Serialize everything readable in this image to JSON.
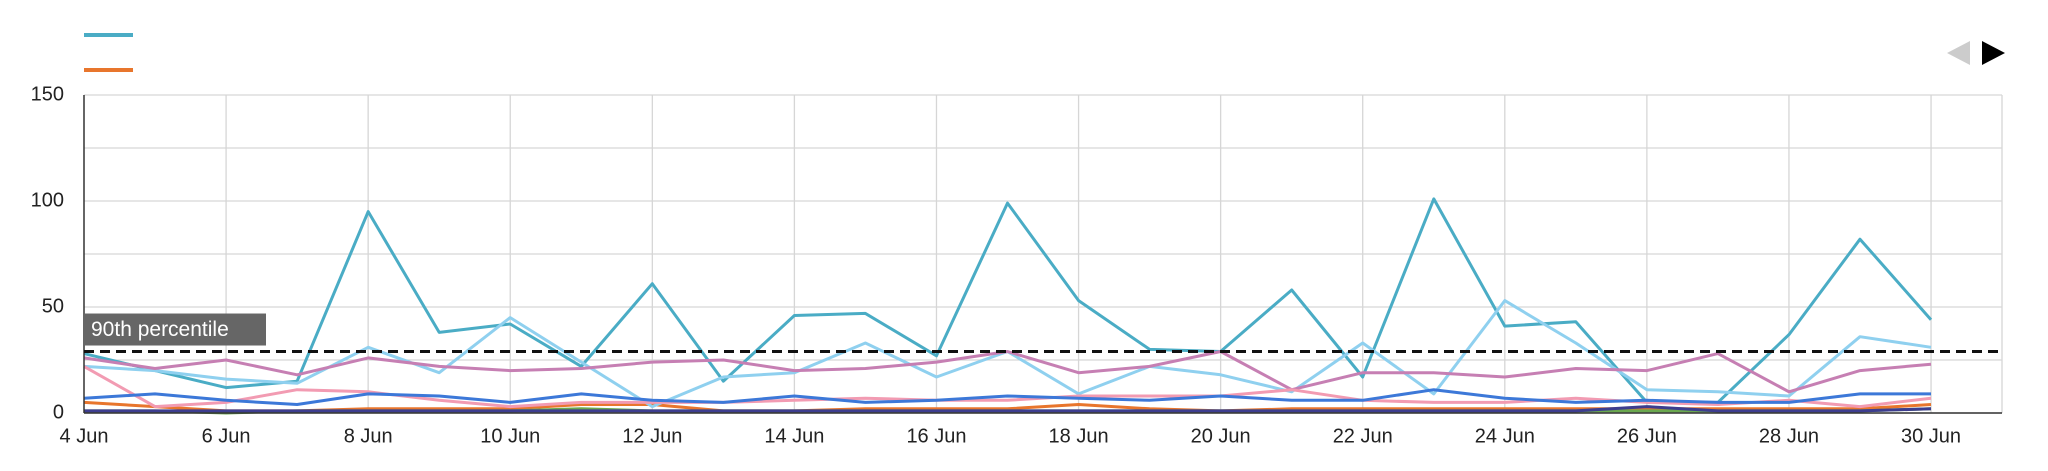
{
  "chart_data": {
    "type": "line",
    "categories": [
      "4 Jun",
      null,
      "6 Jun",
      null,
      "8 Jun",
      null,
      "10 Jun",
      null,
      "12 Jun",
      null,
      "14 Jun",
      null,
      "16 Jun",
      null,
      "18 Jun",
      null,
      "20 Jun",
      null,
      "22 Jun",
      null,
      "24 Jun",
      null,
      "26 Jun",
      null,
      "28 Jun",
      null,
      "30 Jun"
    ],
    "ylim": [
      0,
      150
    ],
    "yticks": [
      0,
      50,
      100,
      150
    ],
    "y_minor_ticks": [
      25,
      75,
      125
    ],
    "grid": true,
    "legend": "top-left",
    "reference_line": {
      "value": 29,
      "label": "90th percentile"
    },
    "series": [
      {
        "color": "#4aacc5",
        "values": [
          28,
          20,
          12,
          15,
          95,
          38,
          42,
          22,
          61,
          15,
          46,
          47,
          27,
          99,
          53,
          30,
          29,
          58,
          17,
          101,
          41,
          43,
          5,
          5,
          37,
          82,
          44
        ]
      },
      {
        "color": "#e8762d",
        "values": [
          5,
          3,
          1,
          1,
          2,
          2,
          2,
          4,
          4,
          1,
          1,
          2,
          2,
          2,
          4,
          2,
          1,
          2,
          2,
          2,
          2,
          2,
          2,
          2,
          2,
          2,
          4
        ]
      },
      {
        "color": "#8fd0ef",
        "values": [
          22,
          20,
          16,
          14,
          31,
          19,
          45,
          24,
          3,
          17,
          19,
          33,
          17,
          29,
          9,
          22,
          18,
          10,
          33,
          9,
          53,
          33,
          11,
          10,
          8,
          36,
          31
        ]
      },
      {
        "color": "#c67fb3",
        "values": [
          26,
          21,
          25,
          18,
          26,
          22,
          20,
          21,
          24,
          25,
          20,
          21,
          24,
          29,
          19,
          22,
          29,
          11,
          19,
          19,
          17,
          21,
          20,
          28,
          10,
          20,
          23
        ]
      },
      {
        "color": "#f29bb2",
        "values": [
          22,
          3,
          5,
          11,
          10,
          6,
          3,
          5,
          5,
          5,
          6,
          7,
          6,
          6,
          8,
          8,
          8,
          11,
          6,
          5,
          5,
          7,
          5,
          4,
          6,
          3,
          7
        ]
      },
      {
        "color": "#3c78d8",
        "values": [
          7,
          9,
          6,
          4,
          9,
          8,
          5,
          9,
          6,
          5,
          8,
          5,
          6,
          8,
          7,
          6,
          8,
          6,
          6,
          11,
          7,
          5,
          6,
          5,
          5,
          9,
          9
        ]
      },
      {
        "color": "#6aa84f",
        "values": [
          1,
          1,
          0,
          1,
          1,
          1,
          1,
          2,
          1,
          1,
          1,
          1,
          1,
          1,
          1,
          1,
          1,
          1,
          1,
          1,
          1,
          1,
          1,
          1,
          1,
          1,
          2
        ]
      },
      {
        "color": "#3d3d8f",
        "values": [
          1,
          1,
          1,
          1,
          1,
          1,
          1,
          1,
          1,
          1,
          1,
          1,
          1,
          1,
          1,
          1,
          1,
          1,
          1,
          1,
          1,
          1,
          3,
          1,
          1,
          1,
          2
        ]
      }
    ]
  }
}
